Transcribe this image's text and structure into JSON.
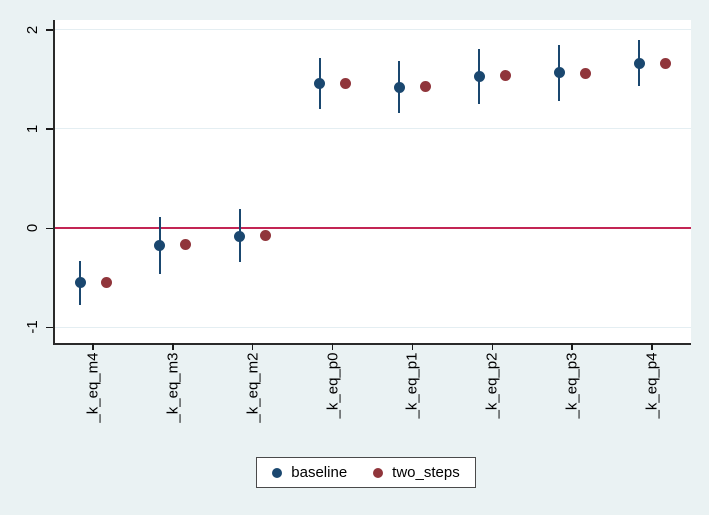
{
  "chart_data": {
    "type": "scatter",
    "title": "",
    "xlabel": "",
    "ylabel": "",
    "categories": [
      "_k_eq_m4",
      "_k_eq_m3",
      "_k_eq_m2",
      "_k_eq_p0",
      "_k_eq_p1",
      "_k_eq_p2",
      "_k_eq_p3",
      "_k_eq_p4"
    ],
    "series": [
      {
        "name": "baseline",
        "color": "#1a476f",
        "values": [
          -0.55,
          -0.18,
          -0.09,
          1.46,
          1.42,
          1.53,
          1.57,
          1.66
        ],
        "ci_low": [
          -0.78,
          -0.46,
          -0.34,
          1.2,
          1.16,
          1.25,
          1.28,
          1.43
        ],
        "ci_high": [
          -0.33,
          0.11,
          0.19,
          1.72,
          1.69,
          1.81,
          1.85,
          1.9
        ]
      },
      {
        "name": "two_steps",
        "color": "#90353b",
        "values": [
          -0.55,
          -0.17,
          -0.08,
          1.46,
          1.43,
          1.54,
          1.56,
          1.66
        ]
      }
    ],
    "yticks": [
      -1,
      0,
      1,
      2
    ],
    "ytick_labels": [
      "-1",
      "0",
      "1",
      "2"
    ],
    "ylim": [
      -1.16,
      2.1
    ],
    "refline": {
      "y": 0,
      "color": "#c32554"
    },
    "grid": true,
    "grid_color": "#e4eef2",
    "plot_background": "#ffffff",
    "page_background": "#eaf2f3",
    "legend_position": "bottom-center"
  }
}
